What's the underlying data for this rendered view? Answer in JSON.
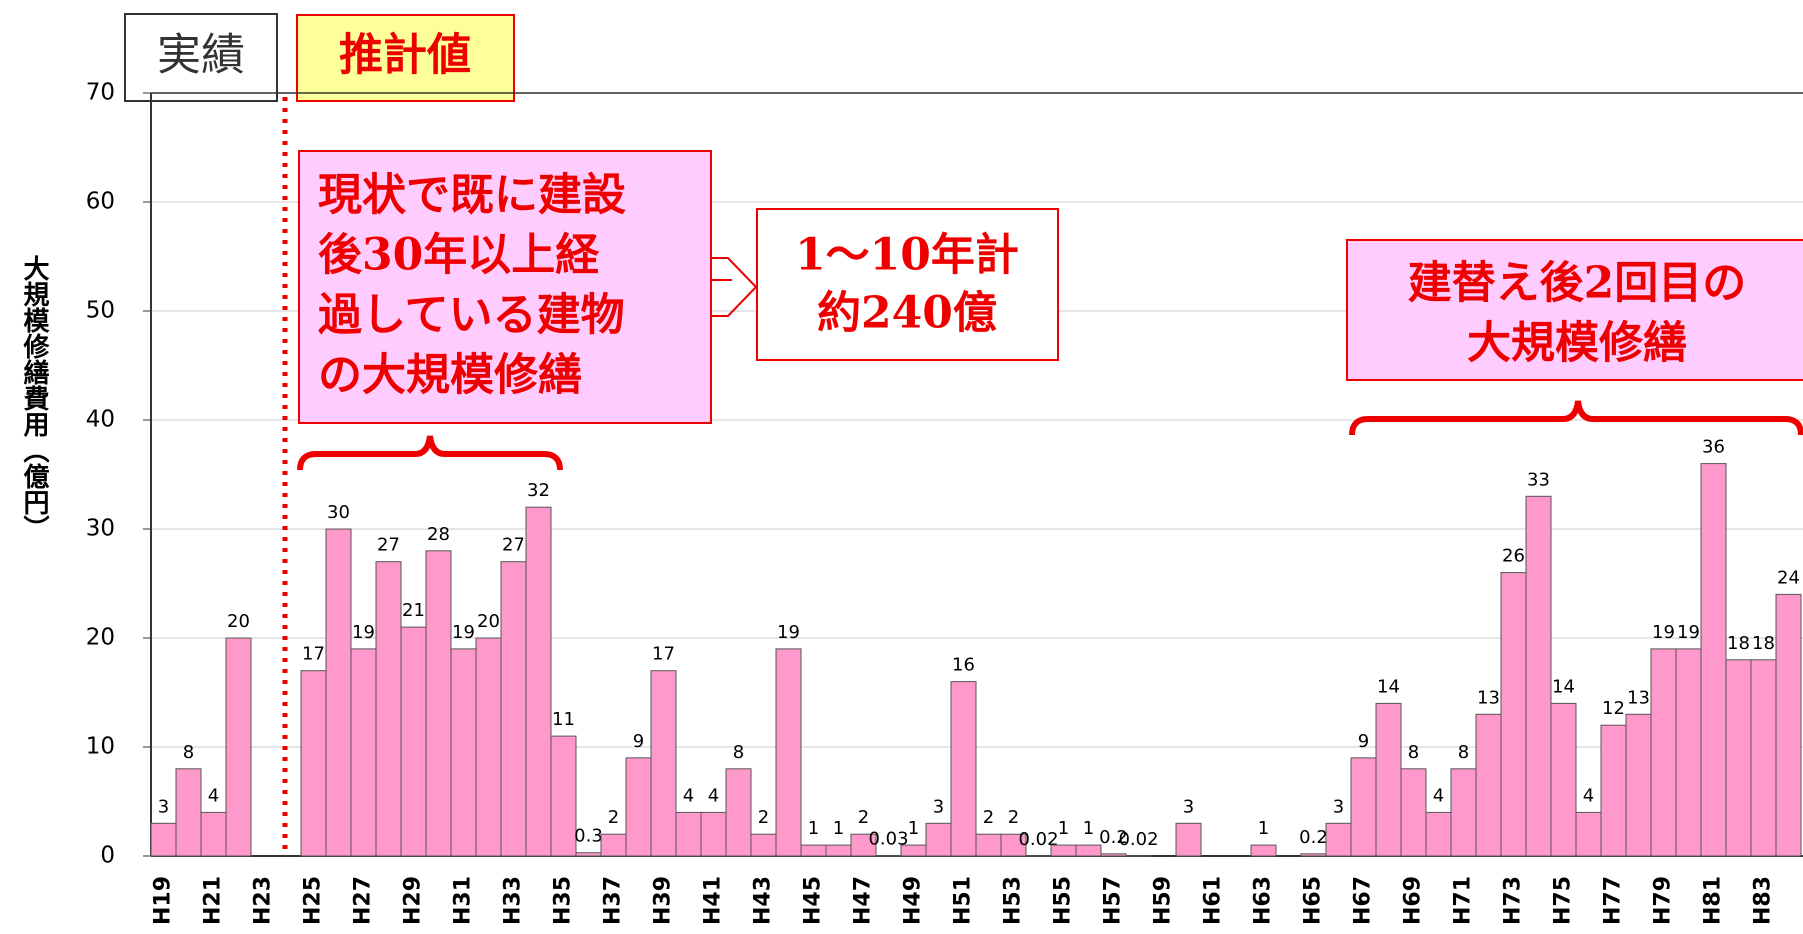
{
  "chart_data": {
    "type": "bar",
    "y_label": "大規模修繕費用（億円）",
    "categories": [
      "H19",
      null,
      "H21",
      null,
      "H23",
      null,
      "H25",
      null,
      "H27",
      null,
      "H29",
      null,
      "H31",
      null,
      "H33",
      null,
      "H35",
      null,
      "H37",
      null,
      "H39",
      null,
      "H41",
      null,
      "H43",
      null,
      "H45",
      null,
      "H47",
      null,
      "H49",
      null,
      "H51",
      null,
      "H53",
      null,
      "H55",
      null,
      "H57",
      null,
      "H59",
      null,
      "H61",
      null,
      "H63",
      null,
      "H65",
      null,
      "H67",
      null,
      "H69",
      null,
      "H71",
      null,
      "H73",
      null,
      "H75",
      null,
      "H77",
      null,
      "H79",
      null,
      "H81",
      null,
      "H83",
      null
    ],
    "values": [
      3,
      8,
      4,
      20,
      null,
      null,
      17,
      30,
      19,
      27,
      21,
      28,
      19,
      20,
      27,
      32,
      11,
      0.3,
      2,
      9,
      17,
      4,
      4,
      8,
      2,
      19,
      1,
      1,
      2,
      0.03,
      1,
      3,
      16,
      2,
      2,
      0.02,
      1,
      1,
      0.2,
      0.02,
      null,
      3,
      null,
      null,
      1,
      null,
      0.2,
      3,
      9,
      14,
      8,
      4,
      8,
      13,
      26,
      33,
      14,
      4,
      12,
      13,
      19,
      19,
      36,
      18,
      18,
      24
    ],
    "color": "#ff99cc",
    "ylim": [
      0,
      70
    ],
    "yticks": [
      0,
      10,
      20,
      30,
      40,
      50,
      60,
      70
    ],
    "grid": true,
    "annotations": {
      "actual": "実績",
      "estimate": "推計値",
      "box1": [
        "現状で既に建設",
        "後30年以上経",
        "過している建物",
        "の大規模修繕"
      ],
      "box2": [
        "1～10年計",
        "約240億"
      ],
      "box3": [
        "建替え後2回目の",
        "大規模修繕"
      ]
    }
  }
}
